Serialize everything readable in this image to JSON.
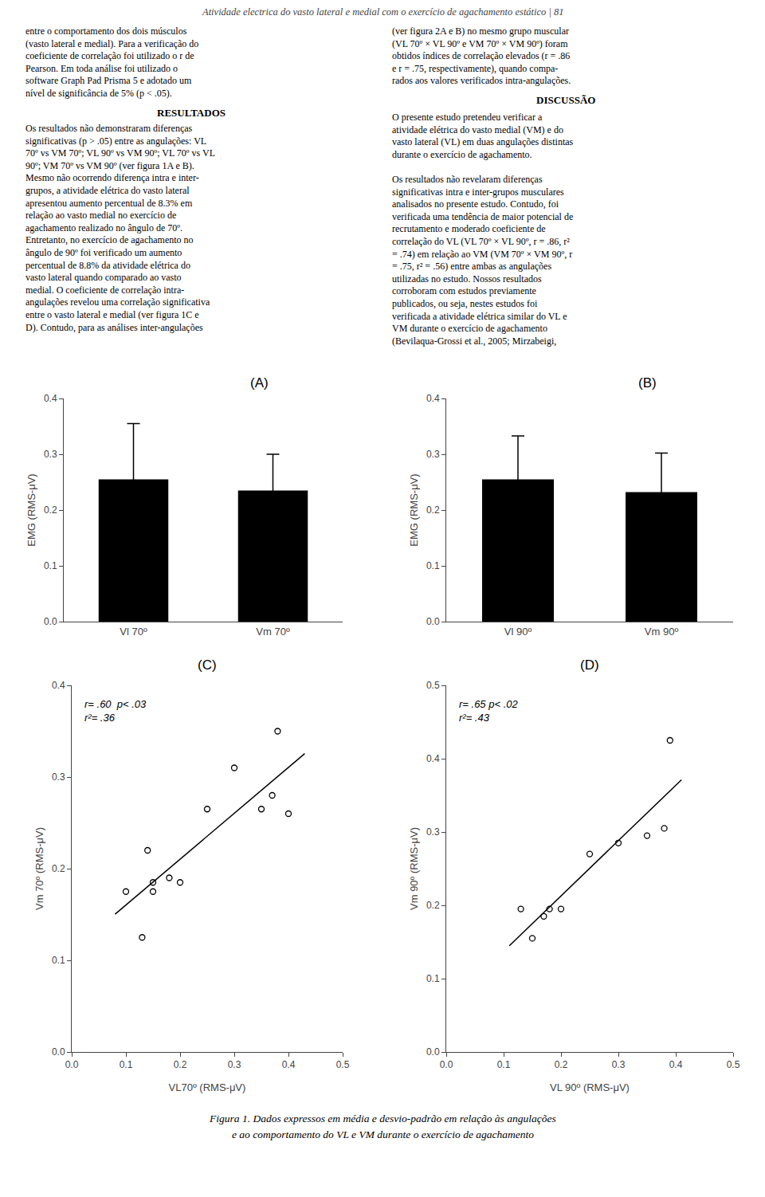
{
  "title": "Atividade electrica do vasto lateral e medial com o exercício de agachamento estático | 81",
  "annotations": [
    "entre o comportamento dos dois músculos\n(vasto lateral e medial). Para a verificação do\ncoeficiente de correlação foi utilizado o r de\nPearson. Em toda análise foi utilizado o\nsoftware Graph Pad Prisma 5 e adotado um\nnível de significância de 5% (p < .05).",
    "RESULTADOS",
    "Os resultados não demonstraram diferenças\nsignificativas (p > .05) entre as angulações: VL\n70º vs VM 70º; VL 90º vs VM 90º; VL 70º vs VL\n90º; VM 70º vs VM 90º (ver figura 1A e B).\nMesmo não ocorrendo diferença intra e inter-\ngrupos, a atividade elétrica do vasto lateral\napresentou aumento percentual de 8.3% em\nrelação ao vasto medial no exercício de\nagachamento realizado no ângulo de 70º.\nEntretanto, no exercício de agachamento no\nângulo de 90º foi verificado um aumento\npercentual de 8.8% da atividade elétrica do\nvasto lateral quando comparado ao vasto\nmedial. O coeficiente de correlação intra-\nangulações revelou uma correlação significativa\nentre o vasto lateral e medial (ver figura 1C e\nD). Contudo, para as análises inter-angulações",
    "(ver figura 2A e B) no mesmo grupo muscular\n(VL 70º × VL 90º e VM 70º × VM 90º) foram\nobtidos índices de correlação elevados (r = .86\ne r = .75, respectivamente), quando compa-\nrados aos valores verificados intra-angulações.",
    "DISCUSSÃO",
    "O presente estudo pretendeu verificar a\natividade elétrica do vasto medial (VM) e do\nvasto lateral (VL) em duas angulações distintas\ndurante o exercício de agachamento.\n\nOs resultados não revelaram diferenças\nsignificativas intra e inter-grupos musculares\nanalisados no presente estudo. Contudo, foi\nverificada uma tendência de maior potencial de\nrecrutamento e moderado coeficiente de\ncorrelação do VL (VL 70º × VL 90º, r = .86, r²\n= .74) em relação ao VM (VM 70º × VM 90º, r\n= .75, r² = .56) entre ambas as angulações\nutilizadas no estudo. Nossos resultados\ncorroboram com estudos previamente\npublicados, ou seja, nestes estudos foi\nverificada a atividade elétrica similar do VL e\nVM durante o exercício de agachamento\n(Bevilaqua-Grossi et al., 2005; Mirzabeigi,",
    "Figura 1. Dados expressos em média e desvio-padrão em relação às angulações",
    "e ao comportamento do VL e VM durante o exercício de agachamento"
  ],
  "chart_data": [
    {
      "type": "bar",
      "title": "(A)",
      "categories": [
        "Vl 70º",
        "Vm 70º"
      ],
      "values": [
        0.255,
        0.235
      ],
      "errors": [
        0.1,
        0.065
      ],
      "color": "#000000",
      "ylabel": "EMG (RMS-μV)",
      "ylim": [
        0.0,
        0.4
      ],
      "yticks": [
        {
          "value": 0.0,
          "label": "0.0"
        },
        0.1,
        0.2,
        0.3,
        0.4
      ],
      "grid": false
    },
    {
      "type": "bar",
      "title": "(B)",
      "categories": [
        "Vl 90º",
        "Vm 90º"
      ],
      "values": [
        0.255,
        0.232
      ],
      "errors": [
        0.078,
        0.07
      ],
      "color": "#000000",
      "ylabel": "EMG (RMS-μV)",
      "ylim": [
        0.0,
        0.4
      ],
      "yticks": [
        {
          "value": 0.0,
          "label": "0.0"
        },
        0.1,
        0.2,
        0.3,
        0.4
      ],
      "grid": false
    },
    {
      "type": "scatter",
      "title": "(C)",
      "xlabel": "VL70º (RMS-μV)",
      "ylabel": "Vm 70º (RMS-μV)",
      "xlim": [
        0.0,
        0.5
      ],
      "ylim": [
        0.0,
        0.4
      ],
      "xticks": [
        {
          "value": 0.0,
          "label": "0.0"
        },
        0.1,
        0.2,
        0.3,
        0.4,
        0.5
      ],
      "yticks": [
        {
          "value": 0.0,
          "label": "0.0"
        },
        0.1,
        0.2,
        0.3,
        0.4
      ],
      "annotation": "r= .60  p< .03\nr²= .36",
      "grid": false,
      "series": [
        {
          "type": "scatter",
          "marker": "circle-open",
          "color": "#000000",
          "x": [
            0.1,
            0.13,
            0.14,
            0.15,
            0.15,
            0.18,
            0.2,
            0.25,
            0.3,
            0.35,
            0.37,
            0.38,
            0.4
          ],
          "values": [
            0.175,
            0.125,
            0.22,
            0.185,
            0.175,
            0.19,
            0.185,
            0.265,
            0.31,
            0.265,
            0.28,
            0.35,
            0.26
          ]
        },
        {
          "type": "line",
          "line_style": "solid",
          "color": "#000000",
          "x": [
            0.08,
            0.43
          ],
          "values": [
            0.1503,
            0.3255
          ]
        }
      ]
    },
    {
      "type": "scatter",
      "title": "(D)",
      "xlabel": "VL 90º (RMS-μV)",
      "ylabel": "Vm 90º (RMS-μV)",
      "xlim": [
        0.0,
        0.5
      ],
      "ylim": [
        0.0,
        0.5
      ],
      "xticks": [
        {
          "value": 0.0,
          "label": "0.0"
        },
        0.1,
        0.2,
        0.3,
        0.4,
        0.5
      ],
      "yticks": [
        {
          "value": 0.0,
          "label": "0.0"
        },
        0.1,
        0.2,
        0.3,
        0.4,
        0.5
      ],
      "annotation": "r= .65 p< .02\nr²= .43",
      "grid": false,
      "series": [
        {
          "type": "scatter",
          "marker": "circle-open",
          "color": "#000000",
          "x": [
            0.13,
            0.15,
            0.17,
            0.18,
            0.2,
            0.25,
            0.3,
            0.35,
            0.38,
            0.39
          ],
          "values": [
            0.195,
            0.155,
            0.185,
            0.195,
            0.195,
            0.27,
            0.285,
            0.295,
            0.305,
            0.425
          ]
        },
        {
          "type": "line",
          "line_style": "solid",
          "color": "#000000",
          "x": [
            0.11,
            0.41
          ],
          "values": [
            0.1449,
            0.3712
          ]
        }
      ]
    }
  ]
}
